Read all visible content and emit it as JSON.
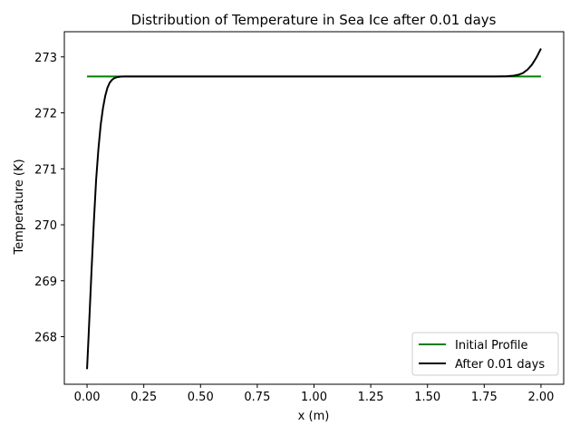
{
  "chart_data": {
    "type": "line",
    "title": "Distribution of Temperature in Sea Ice after 0.01 days",
    "xlabel": "x (m)",
    "ylabel": "Temperature (K)",
    "xlim": [
      -0.1,
      2.1
    ],
    "ylim": [
      267.15,
      273.45
    ],
    "x_ticks": [
      0.0,
      0.25,
      0.5,
      0.75,
      1.0,
      1.25,
      1.5,
      1.75,
      2.0
    ],
    "x_tick_labels": [
      "0.00",
      "0.25",
      "0.50",
      "0.75",
      "1.00",
      "1.25",
      "1.50",
      "1.75",
      "2.00"
    ],
    "y_ticks": [
      268,
      269,
      270,
      271,
      272,
      273
    ],
    "y_tick_labels": [
      "268",
      "269",
      "270",
      "271",
      "272",
      "273"
    ],
    "grid": false,
    "legend_position": "lower-right",
    "series": [
      {
        "name": "Initial Profile",
        "color": "#008000",
        "x": [
          0.0,
          2.0
        ],
        "y": [
          272.65,
          272.65
        ]
      },
      {
        "name": "After 0.01 days",
        "color": "#000000",
        "x": [
          0.0,
          0.005,
          0.01,
          0.015,
          0.02,
          0.03,
          0.04,
          0.05,
          0.06,
          0.07,
          0.08,
          0.09,
          0.1,
          0.11,
          0.12,
          0.13,
          0.14,
          0.15,
          0.17,
          0.2,
          0.3,
          0.5,
          1.0,
          1.5,
          1.8,
          1.85,
          1.88,
          1.9,
          1.92,
          1.94,
          1.96,
          1.98,
          2.0
        ],
        "y": [
          267.42,
          267.85,
          268.3,
          268.75,
          269.2,
          270.05,
          270.8,
          271.35,
          271.78,
          272.08,
          272.3,
          272.45,
          272.54,
          272.59,
          272.62,
          272.635,
          272.643,
          272.648,
          272.65,
          272.65,
          272.65,
          272.65,
          272.65,
          272.65,
          272.65,
          272.655,
          272.665,
          272.68,
          272.71,
          272.77,
          272.86,
          272.99,
          273.15
        ]
      }
    ]
  }
}
